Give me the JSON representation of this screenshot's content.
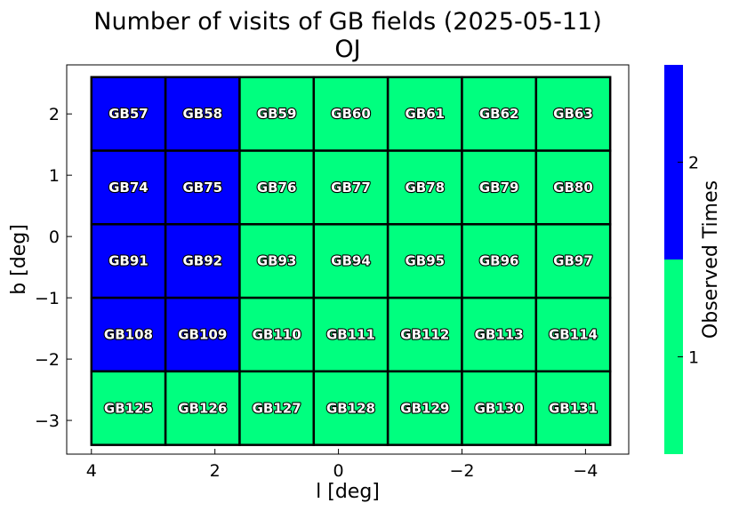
{
  "chart_data": {
    "type": "heatmap",
    "title": "Number of visits of GB fields (2025-05-11)",
    "subtitle": "OJ",
    "xlabel": "l [deg]",
    "ylabel": "b [deg]",
    "xlim": [
      4.4,
      -4.7
    ],
    "ylim": [
      -3.55,
      2.8
    ],
    "x_ticks": [
      4,
      2,
      0,
      -2,
      -4
    ],
    "x_tick_labels": [
      "4",
      "2",
      "0",
      "−2",
      "−4"
    ],
    "y_ticks": [
      2,
      1,
      0,
      -1,
      -2,
      -3
    ],
    "y_tick_labels": [
      "2",
      "1",
      "0",
      "−1",
      "−2",
      "−3"
    ],
    "grid": false,
    "cell_size_deg": [
      1.2,
      1.2
    ],
    "columns_l_center": [
      3.4,
      2.2,
      1.0,
      -0.2,
      -1.4,
      -2.6,
      -3.8
    ],
    "rows_b_center": [
      2.0,
      0.8,
      -0.4,
      -1.6,
      -2.8
    ],
    "rows_b_center_note_visible_only": null,
    "fields": [
      {
        "name": "GB57",
        "l": 3.4,
        "b": 2.0,
        "visits": 2
      },
      {
        "name": "GB58",
        "l": 2.2,
        "b": 2.0,
        "visits": 2
      },
      {
        "name": "GB59",
        "l": 1.0,
        "b": 2.0,
        "visits": 1
      },
      {
        "name": "GB60",
        "l": -0.2,
        "b": 2.0,
        "visits": 1
      },
      {
        "name": "GB61",
        "l": -1.4,
        "b": 2.0,
        "visits": 1
      },
      {
        "name": "GB62",
        "l": -2.6,
        "b": 2.0,
        "visits": 1
      },
      {
        "name": "GB63",
        "l": -3.8,
        "b": 2.0,
        "visits": 1
      },
      {
        "name": "GB74",
        "l": 3.4,
        "b": 0.8,
        "visits": 2
      },
      {
        "name": "GB75",
        "l": 2.2,
        "b": 0.8,
        "visits": 2
      },
      {
        "name": "GB76",
        "l": 1.0,
        "b": 0.8,
        "visits": 1
      },
      {
        "name": "GB77",
        "l": -0.2,
        "b": 0.8,
        "visits": 1
      },
      {
        "name": "GB78",
        "l": -1.4,
        "b": 0.8,
        "visits": 1
      },
      {
        "name": "GB79",
        "l": -2.6,
        "b": 0.8,
        "visits": 1
      },
      {
        "name": "GB80",
        "l": -3.8,
        "b": 0.8,
        "visits": 1
      },
      {
        "name": "GB91",
        "l": 3.4,
        "b": -0.4,
        "visits": 2
      },
      {
        "name": "GB92",
        "l": 2.2,
        "b": -0.4,
        "visits": 2
      },
      {
        "name": "GB93",
        "l": 1.0,
        "b": -0.4,
        "visits": 1
      },
      {
        "name": "GB94",
        "l": -0.2,
        "b": -0.4,
        "visits": 1
      },
      {
        "name": "GB95",
        "l": -1.4,
        "b": -0.4,
        "visits": 1
      },
      {
        "name": "GB96",
        "l": -2.6,
        "b": -0.4,
        "visits": 1
      },
      {
        "name": "GB97",
        "l": -3.8,
        "b": -0.4,
        "visits": 1
      },
      {
        "name": "GB108",
        "l": 3.4,
        "b": -1.6,
        "visits": 2
      },
      {
        "name": "GB109",
        "l": 2.2,
        "b": -1.6,
        "visits": 2
      },
      {
        "name": "GB110",
        "l": 1.0,
        "b": -1.6,
        "visits": 1
      },
      {
        "name": "GB111",
        "l": -0.2,
        "b": -1.6,
        "visits": 1
      },
      {
        "name": "GB112",
        "l": -1.4,
        "b": -1.6,
        "visits": 1
      },
      {
        "name": "GB113",
        "l": -2.6,
        "b": -1.6,
        "visits": 1
      },
      {
        "name": "GB114",
        "l": -3.8,
        "b": -1.6,
        "visits": 1
      },
      {
        "name": "GB125",
        "l": 3.4,
        "b": -2.8,
        "visits": 1
      },
      {
        "name": "GB126",
        "l": 2.2,
        "b": -2.8,
        "visits": 1
      },
      {
        "name": "GB127",
        "l": 1.0,
        "b": -2.8,
        "visits": 1
      },
      {
        "name": "GB128",
        "l": -0.2,
        "b": -2.8,
        "visits": 1
      },
      {
        "name": "GB129",
        "l": -1.4,
        "b": -2.8,
        "visits": 1
      },
      {
        "name": "GB130",
        "l": -2.6,
        "b": -2.8,
        "visits": 1
      },
      {
        "name": "GB131",
        "l": -3.8,
        "b": -2.8,
        "visits": 1
      }
    ],
    "colorbar": {
      "label": "Observed Times",
      "ticks": [
        1,
        2
      ],
      "tick_labels": [
        "1",
        "2"
      ],
      "range": [
        0.5,
        2.5
      ],
      "colors": {
        "1": "#00ff7f",
        "2": "#0000ff"
      }
    }
  }
}
